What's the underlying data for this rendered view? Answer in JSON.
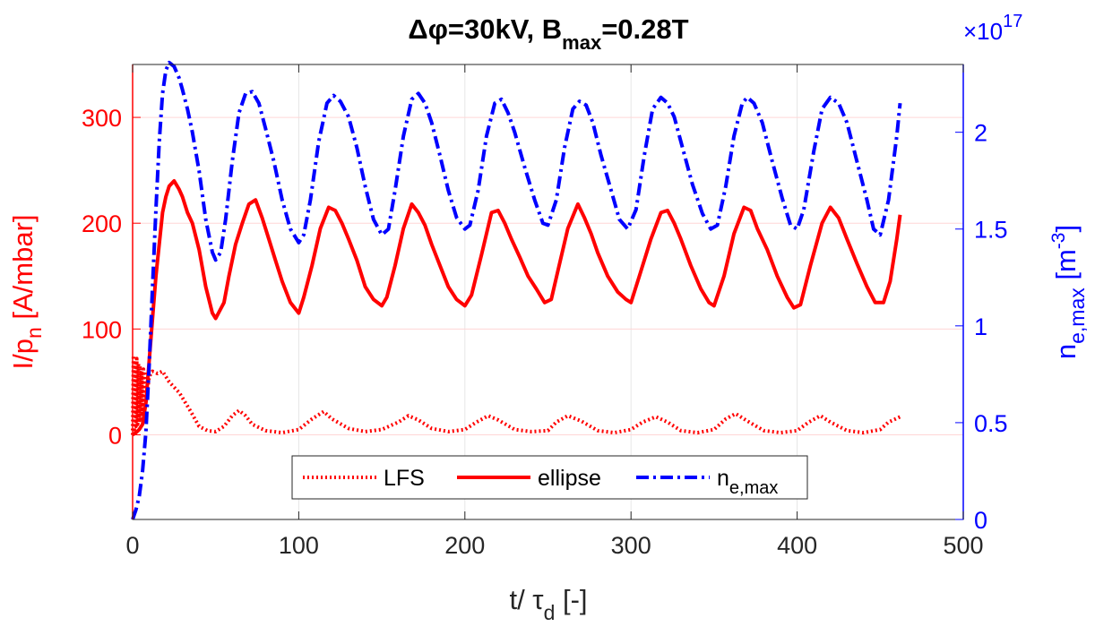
{
  "chart_data": {
    "type": "line",
    "title": {
      "prefix": "Δφ=30kV, B",
      "subscript": "max",
      "suffix": "=0.28T"
    },
    "xlabel": {
      "main": "t/ τ",
      "subscript": "d",
      "suffix": " [-]"
    },
    "ylabel_left": {
      "main": "I/p",
      "subscript": "n",
      "suffix": " [A/mbar]"
    },
    "ylabel_right": {
      "main": "n",
      "subscript": "e,max",
      "suffix": " [m",
      "superscript": "-3",
      "close": "]"
    },
    "xlim": [
      0,
      500
    ],
    "ylim_left": [
      -80,
      350
    ],
    "ylim_right": [
      0,
      2.35
    ],
    "right_axis_multiplier": "×10",
    "right_axis_exponent": "17",
    "x_ticks": [
      "0",
      "100",
      "200",
      "300",
      "400",
      "500"
    ],
    "y_left_ticks": [
      "0",
      "100",
      "200",
      "300"
    ],
    "y_right_ticks": [
      "0",
      "0.5",
      "1",
      "1.5",
      "2"
    ],
    "grid": true,
    "legend_position": "bottom-center",
    "colors": {
      "left_axis": "#ff0000",
      "right_axis": "#0000ff",
      "grid": "#e6e6e6",
      "grid_red": "#ffd6d6"
    },
    "series": [
      {
        "name": "LFS",
        "legend_label": "LFS",
        "axis": "left",
        "style": "dotted",
        "color": "#ff0000",
        "x": [
          0,
          0.5,
          1,
          1.5,
          2,
          2.5,
          3,
          3.5,
          4,
          4.5,
          5,
          5.5,
          6,
          6.5,
          7,
          7.5,
          8,
          10,
          12,
          15,
          18,
          20,
          22,
          25,
          28,
          30,
          35,
          40,
          45,
          50,
          55,
          60,
          64,
          68,
          72,
          80,
          90,
          100,
          108,
          115,
          120,
          130,
          140,
          150,
          160,
          166,
          172,
          180,
          190,
          200,
          207,
          214,
          220,
          230,
          240,
          250,
          255,
          262,
          270,
          280,
          290,
          300,
          307,
          315,
          322,
          330,
          340,
          350,
          357,
          363,
          370,
          380,
          390,
          400,
          407,
          414,
          420,
          430,
          440,
          450,
          455,
          462
        ],
        "y": [
          0,
          75,
          5,
          70,
          8,
          72,
          10,
          68,
          12,
          65,
          15,
          60,
          18,
          62,
          22,
          60,
          30,
          55,
          60,
          58,
          60,
          55,
          50,
          45,
          40,
          35,
          22,
          8,
          4,
          3,
          8,
          18,
          23,
          18,
          10,
          4,
          2,
          5,
          15,
          22,
          15,
          6,
          3,
          5,
          12,
          18,
          14,
          6,
          3,
          5,
          12,
          18,
          14,
          5,
          3,
          4,
          12,
          18,
          13,
          4,
          2,
          5,
          12,
          17,
          12,
          4,
          2,
          5,
          15,
          20,
          13,
          4,
          2,
          4,
          12,
          18,
          12,
          4,
          2,
          5,
          12,
          17
        ]
      },
      {
        "name": "ellipse",
        "legend_label": "ellipse",
        "axis": "left",
        "style": "solid",
        "color": "#ff0000",
        "x": [
          0,
          2,
          4,
          6,
          8,
          10,
          12,
          14,
          16,
          18,
          20,
          22,
          25,
          28,
          30,
          33,
          36,
          40,
          44,
          48,
          50,
          55,
          58,
          62,
          66,
          70,
          74,
          78,
          82,
          86,
          90,
          95,
          100,
          103,
          108,
          113,
          118,
          122,
          126,
          130,
          135,
          140,
          145,
          150,
          153,
          158,
          163,
          168,
          172,
          176,
          180,
          185,
          190,
          195,
          200,
          204,
          210,
          216,
          220,
          224,
          228,
          233,
          238,
          243,
          248,
          252,
          256,
          262,
          268,
          272,
          276,
          280,
          286,
          292,
          297,
          300,
          305,
          312,
          318,
          322,
          326,
          330,
          336,
          342,
          347,
          350,
          356,
          362,
          368,
          372,
          376,
          382,
          388,
          394,
          398,
          402,
          408,
          415,
          420,
          425,
          430,
          436,
          442,
          447,
          452,
          456,
          460,
          462
        ],
        "y": [
          0,
          2,
          5,
          10,
          30,
          70,
          110,
          150,
          180,
          210,
          225,
          235,
          240,
          232,
          225,
          210,
          200,
          175,
          140,
          115,
          110,
          125,
          150,
          180,
          200,
          218,
          222,
          205,
          185,
          165,
          145,
          125,
          115,
          130,
          160,
          195,
          215,
          212,
          200,
          185,
          165,
          140,
          128,
          122,
          130,
          160,
          195,
          218,
          210,
          198,
          180,
          160,
          140,
          128,
          122,
          132,
          170,
          210,
          212,
          200,
          185,
          168,
          150,
          138,
          125,
          128,
          155,
          195,
          218,
          205,
          190,
          172,
          150,
          135,
          128,
          125,
          150,
          185,
          210,
          212,
          200,
          185,
          160,
          138,
          125,
          122,
          150,
          190,
          215,
          212,
          195,
          175,
          150,
          130,
          120,
          123,
          160,
          200,
          215,
          205,
          185,
          162,
          140,
          125,
          125,
          145,
          185,
          208
        ]
      },
      {
        "name": "n_e,max",
        "legend_label": {
          "main": "n",
          "subscript": "e,max"
        },
        "axis": "right",
        "style": "dashdot",
        "color": "#0000ff",
        "x": [
          0,
          2,
          4,
          6,
          8,
          10,
          12,
          14,
          16,
          18,
          20,
          22,
          25,
          28,
          30,
          33,
          36,
          40,
          44,
          48,
          50,
          53,
          56,
          60,
          64,
          68,
          72,
          76,
          80,
          85,
          90,
          95,
          100,
          103,
          107,
          112,
          117,
          121,
          125,
          130,
          135,
          140,
          145,
          150,
          154,
          158,
          163,
          168,
          172,
          176,
          180,
          185,
          190,
          195,
          200,
          203,
          208,
          213,
          218,
          222,
          226,
          230,
          236,
          242,
          247,
          250,
          255,
          260,
          265,
          269,
          273,
          277,
          282,
          288,
          293,
          298,
          303,
          308,
          313,
          318,
          322,
          326,
          331,
          337,
          343,
          348,
          352,
          357,
          362,
          367,
          370,
          374,
          379,
          385,
          391,
          396,
          400,
          404,
          410,
          415,
          420,
          425,
          430,
          436,
          442,
          446,
          450,
          455,
          460,
          462
        ],
        "y": [
          0.0,
          0.05,
          0.12,
          0.25,
          0.45,
          0.8,
          1.2,
          1.6,
          1.95,
          2.2,
          2.32,
          2.36,
          2.34,
          2.28,
          2.22,
          2.12,
          2.0,
          1.8,
          1.55,
          1.38,
          1.34,
          1.38,
          1.55,
          1.85,
          2.1,
          2.2,
          2.21,
          2.15,
          2.02,
          1.85,
          1.65,
          1.5,
          1.43,
          1.47,
          1.65,
          1.95,
          2.15,
          2.19,
          2.16,
          2.08,
          1.92,
          1.72,
          1.55,
          1.47,
          1.5,
          1.7,
          1.98,
          2.17,
          2.2,
          2.15,
          2.05,
          1.88,
          1.7,
          1.56,
          1.5,
          1.52,
          1.7,
          1.98,
          2.15,
          2.17,
          2.1,
          2.0,
          1.82,
          1.65,
          1.53,
          1.52,
          1.65,
          1.92,
          2.12,
          2.16,
          2.14,
          2.05,
          1.88,
          1.7,
          1.55,
          1.5,
          1.6,
          1.88,
          2.12,
          2.18,
          2.15,
          2.08,
          1.92,
          1.73,
          1.58,
          1.5,
          1.52,
          1.72,
          1.98,
          2.15,
          2.18,
          2.15,
          2.05,
          1.85,
          1.66,
          1.52,
          1.5,
          1.6,
          1.9,
          2.12,
          2.18,
          2.15,
          2.05,
          1.85,
          1.65,
          1.5,
          1.47,
          1.65,
          1.98,
          2.15
        ]
      }
    ]
  }
}
